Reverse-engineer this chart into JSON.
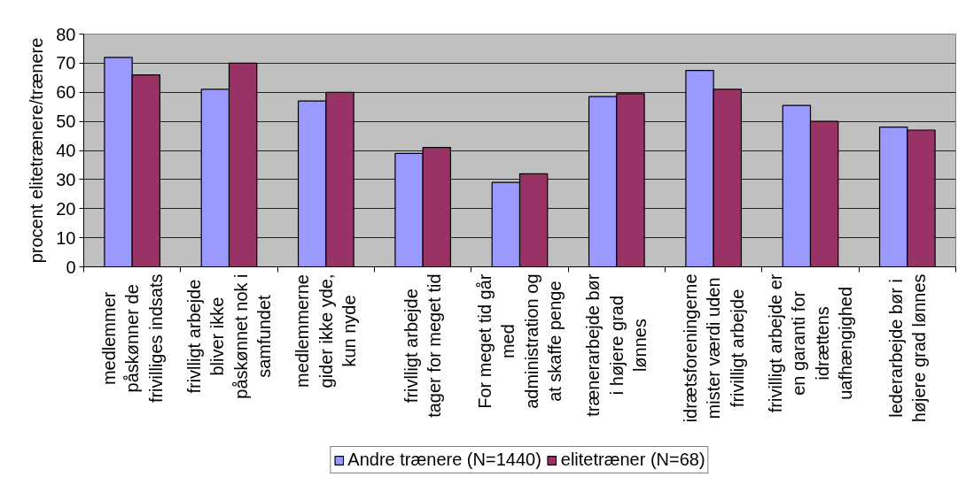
{
  "chart_data": {
    "type": "bar",
    "ylabel": "procent elitetrænere/trænere",
    "categories": [
      "medlemmer\npåskønner de\nfrivilliges indsats",
      "frivlligt arbejde\nbliver ikke\npåskønnet nok i\nsamfundet",
      "medlemmerne\ngider ikke yde,\nkun nyde",
      "frivlligt arbejde\ntager for meget tid",
      "For meget tid går\nmed\nadministration og\nat skaffe penge",
      "trænerarbejde bør\ni højere grad\nlønnes",
      "idrætsforeningerne\nmister værdi uden\nfrivilligt arbejde",
      "frivilligt arbejde er\nen garanti for\nidrættens\nuafhængighed",
      "lederarbejde bør i\nhøjere grad lønnes"
    ],
    "series": [
      {
        "name": "Andre trænere (N=1440)",
        "color": "#9999ff",
        "values": [
          72,
          61,
          57,
          39,
          29,
          58.5,
          67.5,
          55.5,
          48
        ]
      },
      {
        "name": "elitetræner (N=68)",
        "color": "#993366",
        "values": [
          66,
          70,
          60,
          41,
          32,
          59.5,
          61,
          50,
          47
        ]
      }
    ],
    "ylim": [
      0,
      80
    ],
    "yticks": [
      0,
      10,
      20,
      30,
      40,
      50,
      60,
      70,
      80
    ],
    "grid": "y",
    "legend": "bottom"
  }
}
